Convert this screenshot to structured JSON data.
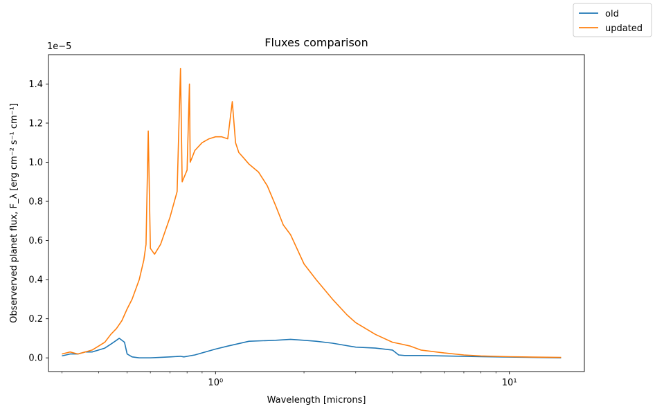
{
  "chart_data": {
    "type": "line",
    "title": "Fluxes comparison",
    "xlabel": "Wavelength [microns]",
    "ylabel": "Observerved planet flux, F_λ [erg cm⁻² s⁻¹ cm⁻¹]",
    "x_scale": "log",
    "xlim": [
      0.27,
      18
    ],
    "ylim": [
      -7e-07,
      1.55e-05
    ],
    "y_offset_label": "1e−5",
    "x_ticks": [
      {
        "value": 1,
        "label": "10⁰"
      },
      {
        "value": 10,
        "label": "10¹"
      }
    ],
    "y_ticks": [
      0,
      0.2,
      0.4,
      0.6,
      0.8,
      1.0,
      1.2,
      1.4
    ],
    "y_tick_labels": [
      "0.0",
      "0.2",
      "0.4",
      "0.6",
      "0.8",
      "1.0",
      "1.2",
      "1.4"
    ],
    "grid": false,
    "legend_position": "top-right (outside axes)",
    "series": [
      {
        "name": "old",
        "color": "#1f77b4",
        "x": [
          0.3,
          0.32,
          0.34,
          0.36,
          0.38,
          0.4,
          0.42,
          0.44,
          0.46,
          0.47,
          0.48,
          0.49,
          0.5,
          0.52,
          0.55,
          0.6,
          0.7,
          0.76,
          0.78,
          0.85,
          1.0,
          1.1,
          1.3,
          1.6,
          1.8,
          2.0,
          2.2,
          2.5,
          3.0,
          3.5,
          4.0,
          4.2,
          4.4,
          5.0,
          6.0,
          8.0,
          10.0,
          12.0,
          15.0
        ],
        "values": [
          0.01,
          0.02,
          0.02,
          0.03,
          0.03,
          0.04,
          0.05,
          0.07,
          0.09,
          0.1,
          0.09,
          0.08,
          0.02,
          0.005,
          0.0,
          0.0,
          0.005,
          0.008,
          0.005,
          0.015,
          0.045,
          0.06,
          0.085,
          0.09,
          0.095,
          0.09,
          0.085,
          0.075,
          0.055,
          0.05,
          0.04,
          0.015,
          0.012,
          0.012,
          0.01,
          0.006,
          0.004,
          0.002,
          0.0
        ]
      },
      {
        "name": "updated",
        "color": "#ff7f0e",
        "x": [
          0.3,
          0.32,
          0.34,
          0.36,
          0.38,
          0.4,
          0.42,
          0.44,
          0.46,
          0.48,
          0.5,
          0.52,
          0.55,
          0.57,
          0.58,
          0.59,
          0.6,
          0.62,
          0.65,
          0.7,
          0.74,
          0.76,
          0.77,
          0.78,
          0.8,
          0.815,
          0.82,
          0.83,
          0.85,
          0.9,
          0.95,
          1.0,
          1.05,
          1.1,
          1.14,
          1.17,
          1.2,
          1.25,
          1.3,
          1.4,
          1.5,
          1.6,
          1.7,
          1.8,
          2.0,
          2.2,
          2.5,
          2.8,
          3.0,
          3.5,
          4.0,
          4.3,
          4.6,
          5.0,
          6.0,
          7.0,
          8.0,
          10.0,
          12.0,
          15.0
        ],
        "values": [
          0.02,
          0.03,
          0.02,
          0.03,
          0.04,
          0.06,
          0.08,
          0.12,
          0.15,
          0.19,
          0.25,
          0.3,
          0.4,
          0.5,
          0.58,
          1.16,
          0.56,
          0.53,
          0.58,
          0.72,
          0.85,
          1.48,
          0.9,
          0.92,
          0.96,
          1.4,
          1.0,
          1.02,
          1.06,
          1.1,
          1.12,
          1.13,
          1.13,
          1.12,
          1.31,
          1.1,
          1.05,
          1.02,
          0.99,
          0.95,
          0.88,
          0.78,
          0.68,
          0.63,
          0.48,
          0.4,
          0.3,
          0.22,
          0.18,
          0.12,
          0.08,
          0.07,
          0.06,
          0.04,
          0.025,
          0.015,
          0.01,
          0.006,
          0.004,
          0.002
        ]
      }
    ]
  }
}
